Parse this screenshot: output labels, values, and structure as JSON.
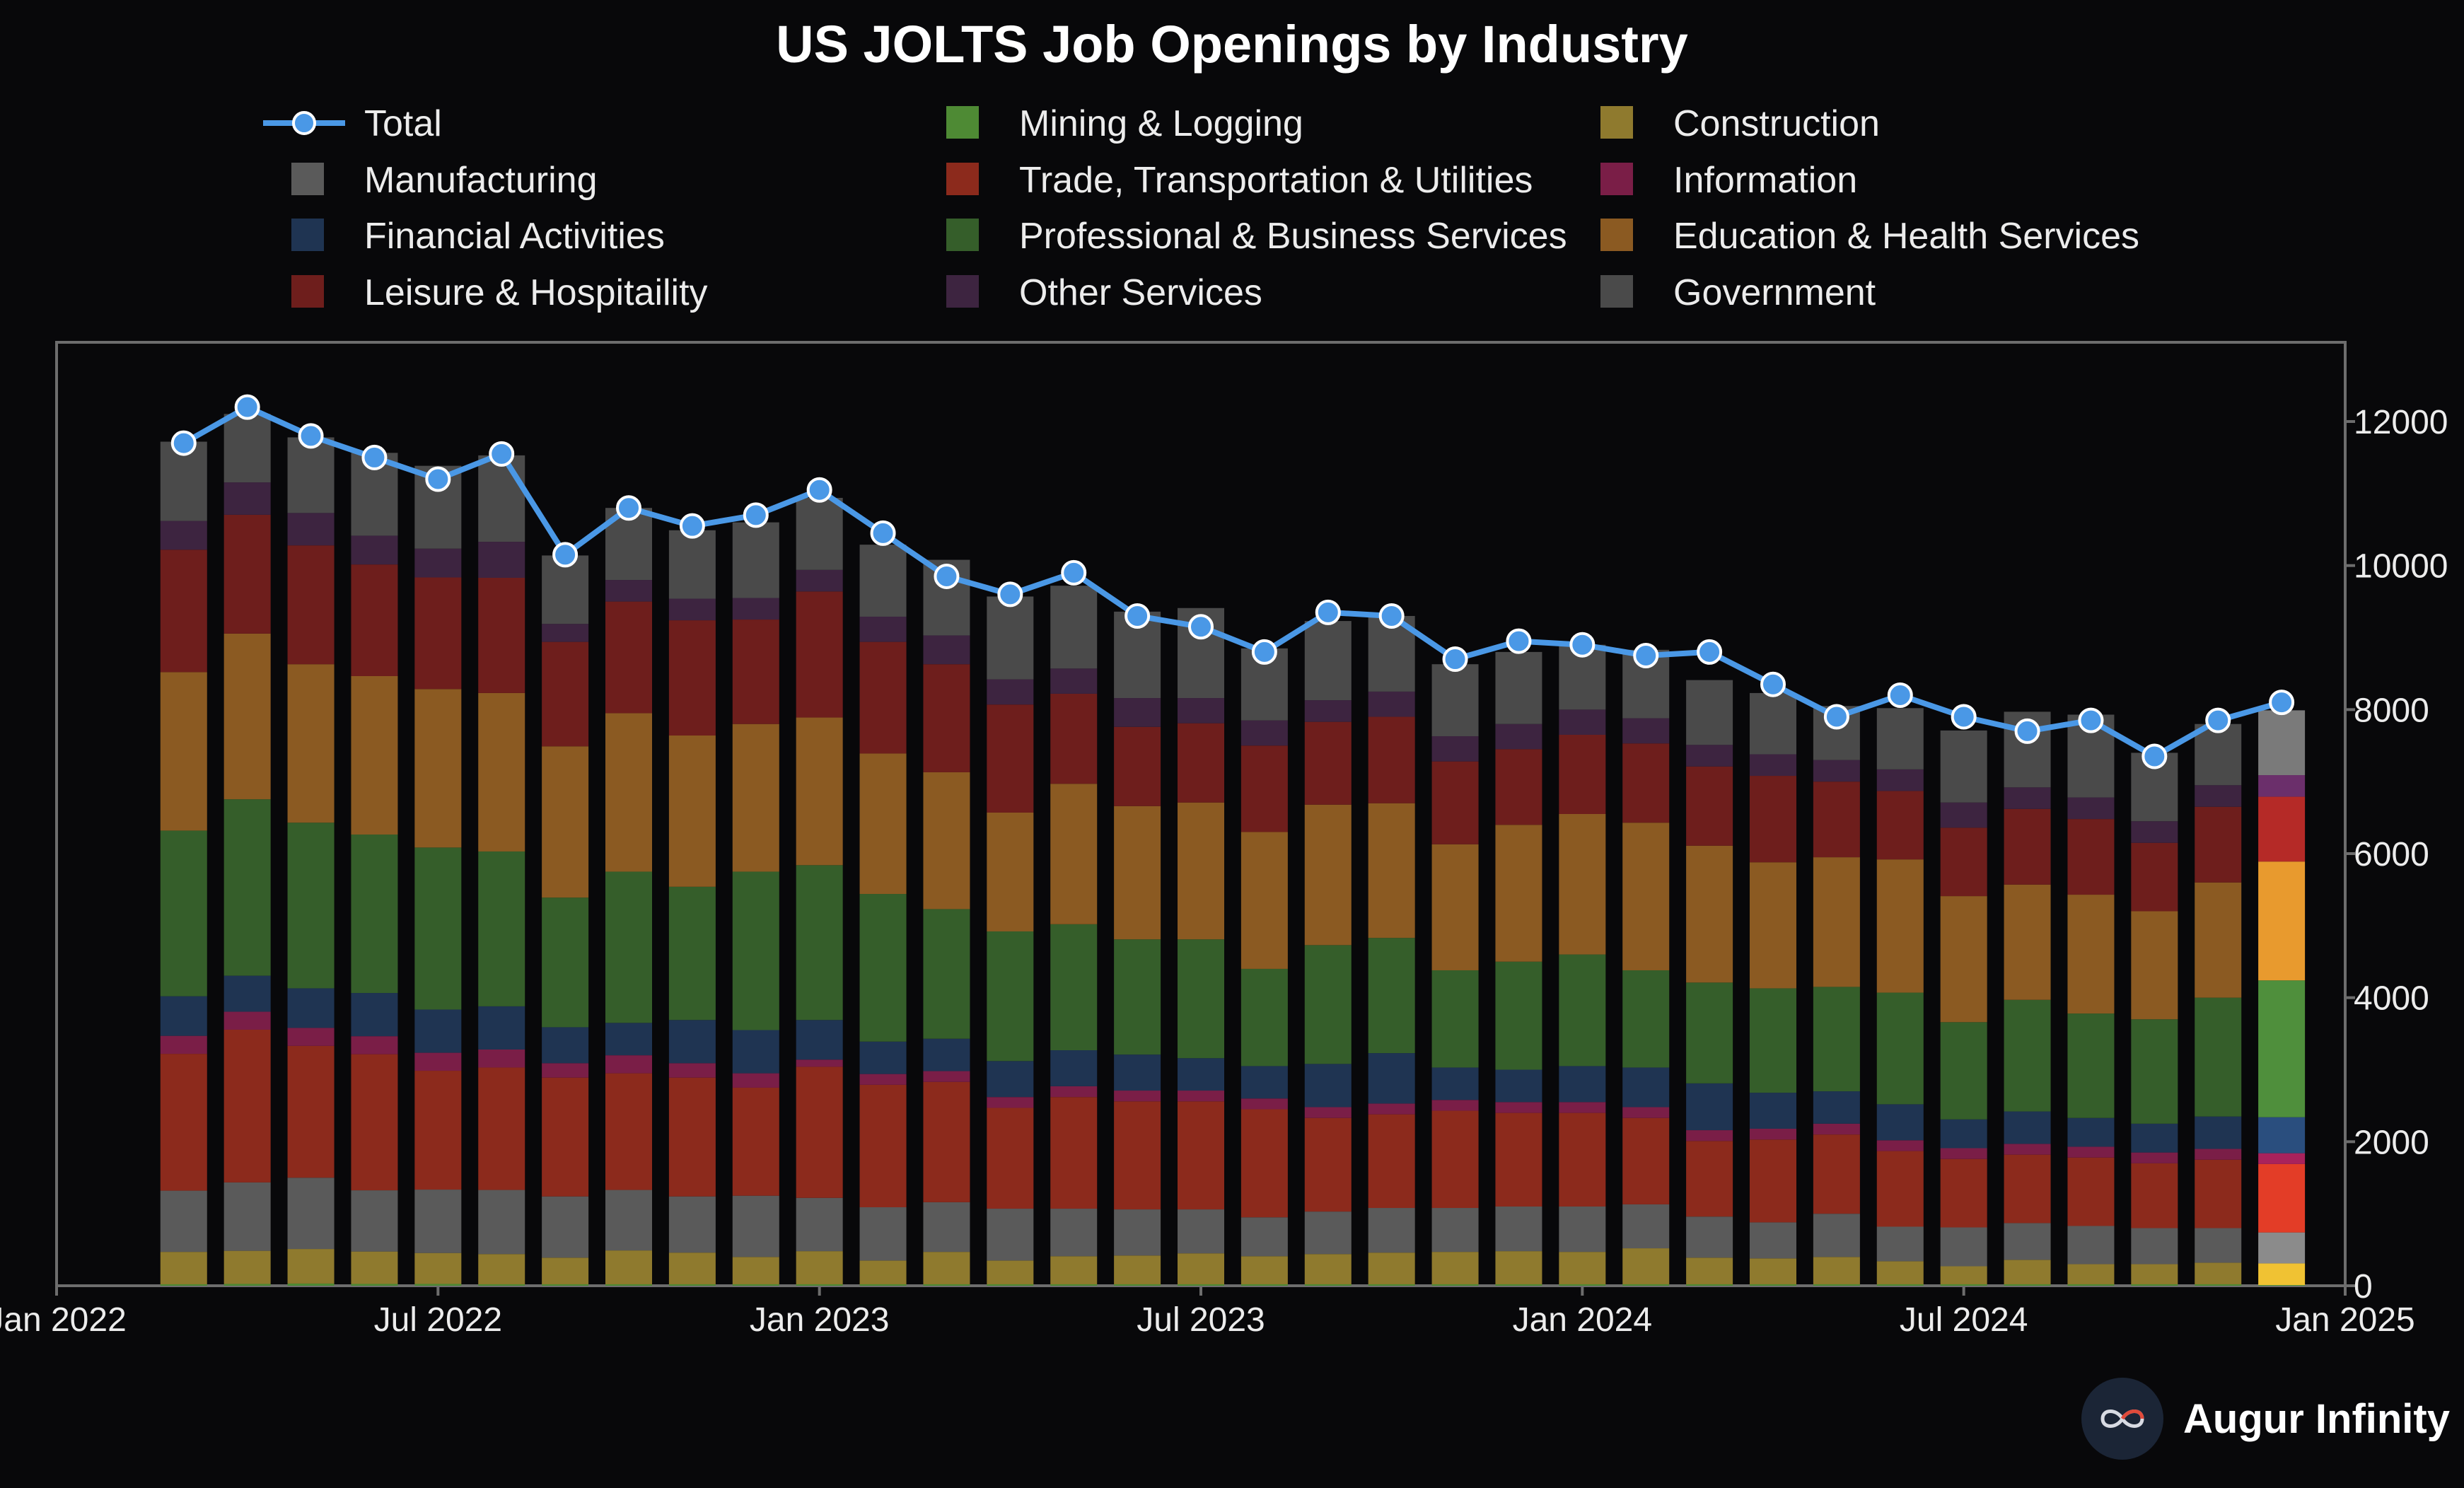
{
  "brand": {
    "name": "Augur Infinity",
    "logo_icon": "infinity-icon"
  },
  "chart_data": {
    "type": "bar",
    "stacked": true,
    "title": "US JOLTS Job Openings by Industry",
    "xlabel": "",
    "ylabel": "",
    "ylim": [
      0,
      12000
    ],
    "y_axis_side": "right",
    "yticks": [
      0,
      2000,
      4000,
      6000,
      8000,
      10000,
      12000
    ],
    "x_range": [
      "2022-01",
      "2025-01"
    ],
    "xticks": [
      {
        "date": "2022-01",
        "label": "Jan 2022"
      },
      {
        "date": "2022-07",
        "label": "Jul 2022"
      },
      {
        "date": "2023-01",
        "label": "Jan 2023"
      },
      {
        "date": "2023-07",
        "label": "Jul 2023"
      },
      {
        "date": "2024-01",
        "label": "Jan 2024"
      },
      {
        "date": "2024-07",
        "label": "Jul 2024"
      },
      {
        "date": "2025-01",
        "label": "Jan 2025"
      }
    ],
    "grid": false,
    "legend_placement": "top",
    "categories": [
      "2022-03",
      "2022-04",
      "2022-05",
      "2022-06",
      "2022-07",
      "2022-08",
      "2022-09",
      "2022-10",
      "2022-11",
      "2022-12",
      "2023-01",
      "2023-02",
      "2023-03",
      "2023-04",
      "2023-05",
      "2023-06",
      "2023-07",
      "2023-08",
      "2023-09",
      "2023-10",
      "2023-11",
      "2023-12",
      "2024-01",
      "2024-02",
      "2024-03",
      "2024-04",
      "2024-05",
      "2024-06",
      "2024-07",
      "2024-08",
      "2024-09",
      "2024-10",
      "2024-11",
      "2024-12"
    ],
    "series": [
      {
        "name": "Mining & Logging",
        "color": "#4e8a34",
        "highlight": "#55953a",
        "values": [
          20,
          25,
          30,
          25,
          25,
          20,
          20,
          20,
          20,
          20,
          20,
          20,
          20,
          20,
          20,
          20,
          20,
          20,
          20,
          20,
          20,
          20,
          20,
          20,
          20,
          20,
          20,
          20,
          20,
          20,
          20,
          20,
          20,
          10
        ]
      },
      {
        "name": "Construction",
        "color": "#8f7a2e",
        "highlight": "#f0c233",
        "values": [
          450,
          460,
          480,
          450,
          430,
          420,
          370,
          470,
          440,
          380,
          460,
          330,
          450,
          330,
          390,
          400,
          430,
          390,
          420,
          440,
          450,
          460,
          450,
          500,
          370,
          360,
          380,
          320,
          250,
          340,
          280,
          280,
          300,
          300
        ]
      },
      {
        "name": "Manufacturing",
        "color": "#5a5a5a",
        "highlight": "#8b8b8b",
        "values": [
          850,
          950,
          990,
          850,
          880,
          890,
          850,
          840,
          780,
          850,
          740,
          740,
          690,
          720,
          660,
          640,
          610,
          540,
          590,
          620,
          610,
          620,
          630,
          610,
          570,
          500,
          600,
          480,
          540,
          510,
          530,
          500,
          480,
          430
        ]
      },
      {
        "name": "Trade, Transportation & Utilities",
        "color": "#8c2a1c",
        "highlight": "#e33d27",
        "values": [
          1900,
          2120,
          1830,
          1890,
          1650,
          1700,
          1650,
          1620,
          1650,
          1500,
          1820,
          1700,
          1670,
          1400,
          1550,
          1500,
          1500,
          1500,
          1300,
          1300,
          1350,
          1300,
          1300,
          1200,
          1050,
          1150,
          1100,
          1050,
          950,
          950,
          950,
          900,
          950,
          950
        ]
      },
      {
        "name": "Information",
        "color": "#7a1e47",
        "highlight": "#a8225c",
        "values": [
          250,
          250,
          250,
          250,
          250,
          250,
          200,
          250,
          200,
          200,
          100,
          150,
          150,
          150,
          150,
          150,
          150,
          150,
          150,
          150,
          150,
          150,
          150,
          150,
          150,
          150,
          150,
          150,
          150,
          150,
          150,
          150,
          150,
          150
        ]
      },
      {
        "name": "Financial Activities",
        "color": "#1f3452",
        "highlight": "#2a4e7e",
        "values": [
          550,
          500,
          550,
          600,
          600,
          600,
          500,
          450,
          600,
          600,
          550,
          450,
          450,
          500,
          500,
          500,
          450,
          450,
          600,
          700,
          450,
          450,
          500,
          550,
          650,
          500,
          450,
          500,
          400,
          450,
          400,
          400,
          450,
          500
        ]
      },
      {
        "name": "Professional & Business Services",
        "color": "#355e2a",
        "highlight": "#4f8f3c",
        "values": [
          2300,
          2450,
          2300,
          2200,
          2250,
          2150,
          1800,
          2100,
          1850,
          2200,
          2150,
          2050,
          1800,
          1800,
          1750,
          1600,
          1650,
          1350,
          1650,
          1600,
          1350,
          1500,
          1550,
          1350,
          1400,
          1450,
          1450,
          1550,
          1350,
          1550,
          1450,
          1450,
          1650,
          1900
        ]
      },
      {
        "name": "Education & Health Services",
        "color": "#8b5a22",
        "highlight": "#e89a2e",
        "values": [
          2200,
          2300,
          2200,
          2200,
          2200,
          2200,
          2100,
          2200,
          2100,
          2050,
          2050,
          1950,
          1900,
          1650,
          1950,
          1850,
          1900,
          1900,
          1950,
          1870,
          1750,
          1900,
          1950,
          2050,
          1900,
          1750,
          1800,
          1850,
          1750,
          1600,
          1650,
          1500,
          1600,
          1650
        ]
      },
      {
        "name": "Leisure & Hospitaility",
        "color": "#6e1e1c",
        "highlight": "#b52a27",
        "values": [
          1700,
          1650,
          1650,
          1550,
          1550,
          1600,
          1450,
          1550,
          1600,
          1450,
          1750,
          1550,
          1500,
          1500,
          1250,
          1100,
          1100,
          1200,
          1150,
          1200,
          1150,
          1050,
          1100,
          1100,
          1100,
          1200,
          1050,
          950,
          950,
          1050,
          1050,
          950,
          1050,
          900
        ]
      },
      {
        "name": "Other Services",
        "color": "#3d2440",
        "highlight": "#6b2f6b",
        "values": [
          400,
          450,
          450,
          400,
          400,
          500,
          250,
          300,
          300,
          300,
          300,
          350,
          400,
          350,
          350,
          400,
          350,
          350,
          300,
          350,
          350,
          350,
          350,
          350,
          300,
          300,
          300,
          300,
          350,
          300,
          300,
          300,
          300,
          300
        ]
      },
      {
        "name": "Government",
        "color": "#4a4a4a",
        "highlight": "#7a7a7a",
        "values": [
          1100,
          950,
          1050,
          1150,
          1150,
          1200,
          950,
          1000,
          950,
          1050,
          1000,
          1000,
          1050,
          1150,
          1150,
          1200,
          1250,
          1000,
          1100,
          1050,
          1000,
          1000,
          900,
          950,
          900,
          850,
          750,
          850,
          1000,
          1050,
          1150,
          950,
          850,
          900
        ]
      }
    ],
    "total": {
      "name": "Total",
      "color": "#4a98e6",
      "values": [
        11700,
        12200,
        11800,
        11500,
        11200,
        11550,
        10150,
        10800,
        10550,
        10700,
        11050,
        10450,
        9850,
        9600,
        9900,
        9300,
        9150,
        8800,
        9350,
        9300,
        8700,
        8950,
        8900,
        8750,
        8800,
        8350,
        7900,
        8200,
        7900,
        7700,
        7850,
        7350,
        7850,
        8100
      ]
    },
    "legend": [
      {
        "name": "Total",
        "kind": "line",
        "color": "#4a98e6"
      },
      {
        "name": "Mining & Logging",
        "kind": "box",
        "color": "#4e8a34"
      },
      {
        "name": "Construction",
        "kind": "box",
        "color": "#8f7a2e"
      },
      {
        "name": "Manufacturing",
        "kind": "box",
        "color": "#5a5a5a"
      },
      {
        "name": "Trade, Transportation & Utilities",
        "kind": "box",
        "color": "#8c2a1c"
      },
      {
        "name": "Information",
        "kind": "box",
        "color": "#7a1e47"
      },
      {
        "name": "Financial Activities",
        "kind": "box",
        "color": "#1f3452"
      },
      {
        "name": "Professional & Business Services",
        "kind": "box",
        "color": "#355e2a"
      },
      {
        "name": "Education & Health Services",
        "kind": "box",
        "color": "#8b5a22"
      },
      {
        "name": "Leisure & Hospitaility",
        "kind": "box",
        "color": "#6e1e1c"
      },
      {
        "name": "Other Services",
        "kind": "box",
        "color": "#3d2440"
      },
      {
        "name": "Government",
        "kind": "box",
        "color": "#4a4a4a"
      }
    ]
  }
}
